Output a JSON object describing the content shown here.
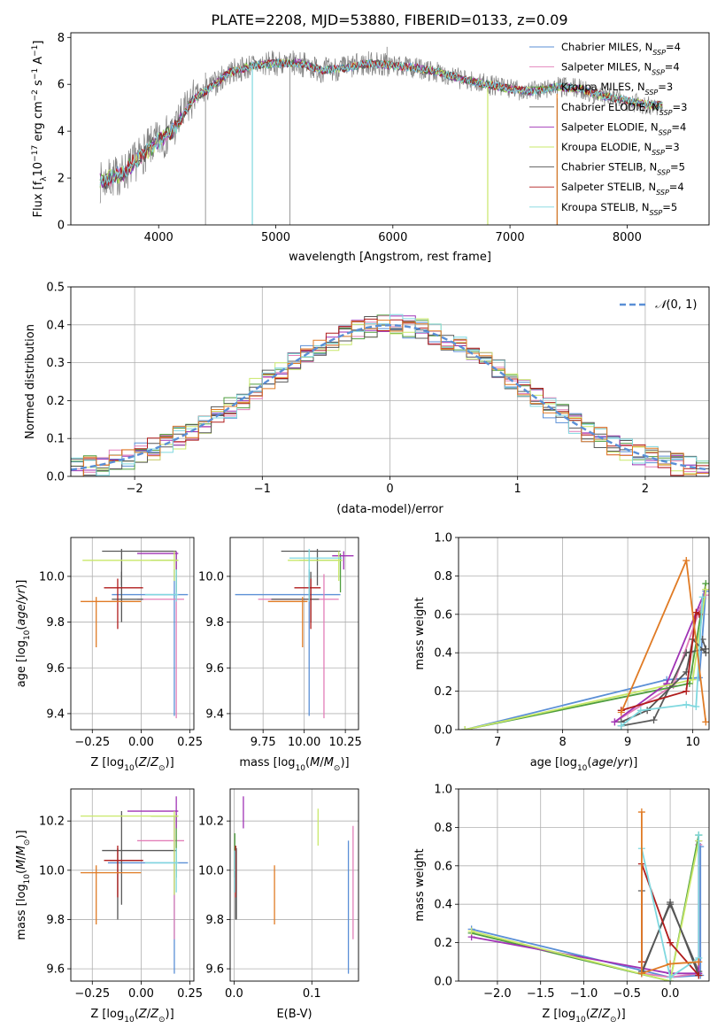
{
  "figure_title": "PLATE=2208, MJD=53880, FIBERID=0133, z=0.09",
  "colors": {
    "Chabrier MILES": "#5b8fd6",
    "Salpeter MILES": "#e27fb8",
    "Kroupa MILES": "#4f9e3e",
    "Chabrier ELODIE": "#5a5a5a",
    "Salpeter ELODIE": "#a033b5",
    "Kroupa ELODIE": "#c9e86a",
    "Chabrier STELIB": "#555555",
    "Salpeter STELIB": "#b01c1c",
    "Kroupa STELIB": "#7fd8df",
    "extra": "#e07b25",
    "data": "#808080",
    "normal": "#5a8fd6"
  },
  "chart_data": [
    {
      "type": "line",
      "panel": "spectrum",
      "title": "PLATE=2208, MJD=53880, FIBERID=0133, z=0.09",
      "xlabel": "wavelength [Angstrom, rest frame]",
      "ylabel": "Flux [f_λ 10^-17 erg cm^-2 s^-1 A^-1]",
      "xlim": [
        3250,
        8700
      ],
      "ylim": [
        0,
        8.2
      ],
      "xticks": [
        4000,
        5000,
        6000,
        7000,
        8000
      ],
      "yticks": [
        0,
        2,
        4,
        6,
        8
      ],
      "grid": false,
      "legend_position": "right",
      "legend": [
        {
          "name": "Chabrier MILES",
          "nssp": "4"
        },
        {
          "name": "Salpeter MILES",
          "nssp": "4"
        },
        {
          "name": "Kroupa MILES",
          "nssp": "3"
        },
        {
          "name": "Chabrier ELODIE",
          "nssp": "3"
        },
        {
          "name": "Salpeter ELODIE",
          "nssp": "4"
        },
        {
          "name": "Kroupa ELODIE",
          "nssp": "3"
        },
        {
          "name": "Chabrier STELIB",
          "nssp": "5"
        },
        {
          "name": "Salpeter STELIB",
          "nssp": "4"
        },
        {
          "name": "Kroupa STELIB",
          "nssp": "5"
        }
      ],
      "data_envelope": {
        "x": [
          3500,
          3700,
          3900,
          4000,
          4100,
          4200,
          4300,
          4400,
          4600,
          4800,
          5000,
          5200,
          5400,
          5600,
          5800,
          6000,
          6200,
          6400,
          6600,
          6800,
          7000,
          7200,
          7400,
          7600,
          7800,
          8000,
          8200,
          8300
        ],
        "y": [
          1.8,
          2.2,
          3.2,
          3.6,
          3.9,
          4.6,
          5.4,
          5.7,
          6.5,
          6.8,
          6.9,
          6.9,
          6.6,
          6.7,
          6.9,
          6.8,
          6.7,
          6.5,
          6.2,
          6.0,
          5.8,
          5.7,
          5.9,
          5.8,
          5.5,
          5.3,
          5.1,
          5.1
        ]
      }
    },
    {
      "type": "bar",
      "panel": "residual histogram",
      "xlabel": "(data-model)/error",
      "ylabel": "Normed distribution",
      "xlim": [
        -2.5,
        2.5
      ],
      "ylim": [
        0,
        0.5
      ],
      "xticks": [
        -2,
        -1,
        0,
        1,
        2
      ],
      "yticks": [
        0.0,
        0.1,
        0.2,
        0.3,
        0.4,
        0.5
      ],
      "grid": true,
      "legend_position": "top-right",
      "legend": [
        {
          "name": "N(0,1)"
        }
      ],
      "bin_width": 0.1
    },
    {
      "type": "scatter",
      "panel": "age vs Z",
      "xlabel": "Z [log10(Z/Z_sun)]",
      "ylabel": "age [log10(age/yr)]",
      "xlim": [
        -0.36,
        0.27
      ],
      "ylim": [
        9.33,
        10.17
      ],
      "xticks": [
        -0.25,
        0.0,
        0.25
      ],
      "yticks": [
        9.4,
        9.6,
        9.8,
        10.0
      ],
      "grid": true,
      "points": [
        {
          "model": "Chabrier MILES",
          "x": 0.17,
          "y": 9.92,
          "xlo": -0.15,
          "xhi": 0.24,
          "ylo": 9.39,
          "yhi": 10.03
        },
        {
          "model": "Salpeter MILES",
          "x": 0.18,
          "y": 9.9,
          "xlo": -0.02,
          "xhi": 0.22,
          "ylo": 9.38,
          "yhi": 10.01
        },
        {
          "model": "Kroupa MILES",
          "x": 0.18,
          "y": 10.07,
          "xlo": 0.05,
          "xhi": 0.19,
          "ylo": 9.93,
          "yhi": 10.1
        },
        {
          "model": "Chabrier ELODIE",
          "x": -0.1,
          "y": 10.11,
          "xlo": -0.2,
          "xhi": 0.18,
          "ylo": 9.96,
          "yhi": 10.12
        },
        {
          "model": "Salpeter ELODIE",
          "x": 0.18,
          "y": 10.1,
          "xlo": -0.02,
          "xhi": 0.19,
          "ylo": 10.03,
          "yhi": 10.11
        },
        {
          "model": "Kroupa ELODIE",
          "x": 0.17,
          "y": 10.07,
          "xlo": -0.3,
          "xhi": 0.19,
          "ylo": 9.98,
          "yhi": 10.11
        },
        {
          "model": "Chabrier STELIB",
          "x": -0.1,
          "y": 9.9,
          "xlo": -0.15,
          "xhi": 0.01,
          "ylo": 9.8,
          "yhi": 10.02
        },
        {
          "model": "Salpeter STELIB",
          "x": -0.12,
          "y": 9.95,
          "xlo": -0.19,
          "xhi": 0.01,
          "ylo": 9.77,
          "yhi": 9.99
        },
        {
          "model": "Kroupa STELIB",
          "x": 0.18,
          "y": 9.92,
          "xlo": 0.02,
          "xhi": 0.19,
          "ylo": 9.89,
          "yhi": 10.03
        },
        {
          "model": "extra",
          "x": -0.23,
          "y": 9.89,
          "xlo": -0.31,
          "xhi": 0.0,
          "ylo": 9.69,
          "yhi": 9.91
        }
      ]
    },
    {
      "type": "scatter",
      "panel": "age vs mass",
      "xlabel": "mass [log10(M/M_sun)]",
      "ylabel": "",
      "xlim": [
        9.55,
        10.33
      ],
      "ylim": [
        9.33,
        10.17
      ],
      "xticks": [
        9.75,
        10.0,
        10.25
      ],
      "yticks": [
        9.4,
        9.6,
        9.8,
        10.0
      ],
      "grid": true,
      "points": [
        {
          "model": "Chabrier MILES",
          "x": 10.03,
          "y": 9.92,
          "xlo": 9.58,
          "xhi": 10.22,
          "ylo": 9.39,
          "yhi": 10.03
        },
        {
          "model": "Salpeter MILES",
          "x": 10.12,
          "y": 9.9,
          "xlo": 9.72,
          "xhi": 10.21,
          "ylo": 9.38,
          "yhi": 10.01
        },
        {
          "model": "Kroupa MILES",
          "x": 10.22,
          "y": 10.07,
          "xlo": 9.97,
          "xhi": 10.23,
          "ylo": 9.93,
          "yhi": 10.1
        },
        {
          "model": "Chabrier ELODIE",
          "x": 10.08,
          "y": 10.11,
          "xlo": 9.86,
          "xhi": 10.22,
          "ylo": 9.96,
          "yhi": 10.12
        },
        {
          "model": "Salpeter ELODIE",
          "x": 10.24,
          "y": 10.09,
          "xlo": 10.17,
          "xhi": 10.3,
          "ylo": 10.03,
          "yhi": 10.11
        },
        {
          "model": "Kroupa ELODIE",
          "x": 10.21,
          "y": 10.07,
          "xlo": 9.9,
          "xhi": 10.23,
          "ylo": 9.98,
          "yhi": 10.11
        },
        {
          "model": "Chabrier STELIB",
          "x": 10.04,
          "y": 9.9,
          "xlo": 9.8,
          "xhi": 10.09,
          "ylo": 9.8,
          "yhi": 10.02
        },
        {
          "model": "Salpeter STELIB",
          "x": 10.04,
          "y": 9.95,
          "xlo": 9.94,
          "xhi": 10.1,
          "ylo": 9.77,
          "yhi": 9.99
        },
        {
          "model": "Kroupa STELIB",
          "x": 10.03,
          "y": 10.08,
          "xlo": 9.91,
          "xhi": 10.23,
          "ylo": 9.89,
          "yhi": 10.12
        },
        {
          "model": "extra",
          "x": 9.99,
          "y": 9.89,
          "xlo": 9.78,
          "xhi": 10.02,
          "ylo": 9.69,
          "yhi": 9.91
        }
      ]
    },
    {
      "type": "line",
      "panel": "mass weight vs age",
      "xlabel": "age [log10(age/yr)]",
      "ylabel": "mass weight",
      "xlim": [
        6.4,
        10.25
      ],
      "ylim": [
        0,
        1.0
      ],
      "xticks": [
        7,
        8,
        9,
        10
      ],
      "yticks": [
        0.0,
        0.2,
        0.4,
        0.6,
        0.8,
        1.0
      ],
      "grid": true,
      "series": [
        {
          "model": "Chabrier MILES",
          "x": [
            6.5,
            9.6,
            10.1,
            10.2
          ],
          "y": [
            0.0,
            0.26,
            0.27,
            0.72
          ]
        },
        {
          "model": "Salpeter MILES",
          "x": [
            8.8,
            9.7,
            10.1,
            10.2
          ],
          "y": [
            0.04,
            0.23,
            0.62,
            0.7
          ]
        },
        {
          "model": "Kroupa MILES",
          "x": [
            6.5,
            9.95,
            10.2
          ],
          "y": [
            0.0,
            0.24,
            0.76
          ]
        },
        {
          "model": "Chabrier ELODIE",
          "x": [
            8.9,
            9.4,
            9.9,
            10.2,
            10.15
          ],
          "y": [
            0.02,
            0.05,
            0.4,
            0.42,
            0.47
          ]
        },
        {
          "model": "Salpeter ELODIE",
          "x": [
            8.8,
            9.6,
            10.2
          ],
          "y": [
            0.04,
            0.24,
            0.73
          ]
        },
        {
          "model": "Kroupa ELODIE",
          "x": [
            6.5,
            10.0,
            10.2
          ],
          "y": [
            0.0,
            0.26,
            0.73
          ]
        },
        {
          "model": "Chabrier STELIB",
          "x": [
            8.9,
            9.3,
            9.9,
            10.0,
            10.2
          ],
          "y": [
            0.04,
            0.1,
            0.3,
            0.47,
            0.4
          ]
        },
        {
          "model": "Salpeter STELIB",
          "x": [
            8.9,
            9.9,
            10.05,
            10.1
          ],
          "y": [
            0.1,
            0.2,
            0.61,
            0.6
          ]
        },
        {
          "model": "Kroupa STELIB",
          "x": [
            8.9,
            9.2,
            9.9,
            10.05,
            10.15
          ],
          "y": [
            0.02,
            0.1,
            0.13,
            0.12,
            0.69
          ]
        },
        {
          "model": "extra",
          "x": [
            8.9,
            9.9,
            10.2
          ],
          "y": [
            0.09,
            0.88,
            0.04
          ]
        }
      ]
    },
    {
      "type": "scatter",
      "panel": "mass vs Z",
      "xlabel": "Z [log10(Z/Z_sun)]",
      "ylabel": "mass [log10(M/M_sun)]",
      "xlim": [
        -0.36,
        0.27
      ],
      "ylim": [
        9.55,
        10.33
      ],
      "xticks": [
        -0.25,
        0.0,
        0.25
      ],
      "yticks": [
        9.6,
        9.8,
        10.0,
        10.2
      ],
      "grid": true,
      "points": [
        {
          "model": "Chabrier MILES",
          "x": 0.17,
          "y": 10.03,
          "xlo": -0.17,
          "xhi": 0.24,
          "ylo": 9.58,
          "yhi": 10.22
        },
        {
          "model": "Salpeter MILES",
          "x": 0.17,
          "y": 10.12,
          "xlo": -0.02,
          "xhi": 0.22,
          "ylo": 9.72,
          "yhi": 10.22
        },
        {
          "model": "Kroupa MILES",
          "x": 0.18,
          "y": 10.22,
          "xlo": 0.05,
          "xhi": 0.19,
          "ylo": 9.97,
          "yhi": 10.23
        },
        {
          "model": "Chabrier ELODIE",
          "x": -0.1,
          "y": 10.08,
          "xlo": -0.2,
          "xhi": 0.18,
          "ylo": 9.86,
          "yhi": 10.24
        },
        {
          "model": "Salpeter ELODIE",
          "x": 0.18,
          "y": 10.24,
          "xlo": -0.07,
          "xhi": 0.19,
          "ylo": 10.17,
          "yhi": 10.3
        },
        {
          "model": "Kroupa ELODIE",
          "x": 0.17,
          "y": 10.22,
          "xlo": -0.31,
          "xhi": 0.19,
          "ylo": 9.9,
          "yhi": 10.24
        },
        {
          "model": "Chabrier STELIB",
          "x": -0.12,
          "y": 10.04,
          "xlo": -0.16,
          "xhi": 0.01,
          "ylo": 9.8,
          "yhi": 10.09
        },
        {
          "model": "Salpeter STELIB",
          "x": -0.12,
          "y": 10.04,
          "xlo": -0.19,
          "xhi": 0.01,
          "ylo": 9.89,
          "yhi": 10.1
        },
        {
          "model": "Kroupa STELIB",
          "x": 0.18,
          "y": 10.03,
          "xlo": 0.02,
          "xhi": 0.19,
          "ylo": 9.91,
          "yhi": 10.09
        },
        {
          "model": "extra",
          "x": -0.23,
          "y": 9.99,
          "xlo": -0.31,
          "xhi": 0.0,
          "ylo": 9.78,
          "yhi": 10.02
        }
      ]
    },
    {
      "type": "scatter",
      "panel": "mass vs E(B-V)",
      "xlabel": "E(B-V)",
      "ylabel": "",
      "xlim": [
        -0.005,
        0.16
      ],
      "ylim": [
        9.55,
        10.33
      ],
      "xticks": [
        0.0,
        0.1
      ],
      "yticks": [
        9.6,
        9.8,
        10.0,
        10.2
      ],
      "grid": true,
      "points": [
        {
          "model": "Chabrier MILES",
          "x": 0.147,
          "y": 10.03,
          "ylo": 9.58,
          "yhi": 10.12
        },
        {
          "model": "Salpeter MILES",
          "x": 0.153,
          "y": 10.12,
          "ylo": 9.72,
          "yhi": 10.18
        },
        {
          "model": "Kroupa MILES",
          "x": 0.001,
          "y": 10.1,
          "ylo": 9.97,
          "yhi": 10.15
        },
        {
          "model": "Chabrier ELODIE",
          "x": 0.003,
          "y": 10.02,
          "ylo": 9.8,
          "yhi": 10.09
        },
        {
          "model": "Salpeter ELODIE",
          "x": 0.012,
          "y": 10.24,
          "ylo": 10.17,
          "yhi": 10.3
        },
        {
          "model": "Kroupa ELODIE",
          "x": 0.108,
          "y": 10.18,
          "ylo": 10.1,
          "yhi": 10.25
        },
        {
          "model": "Chabrier STELIB",
          "x": 0.002,
          "y": 10.05,
          "ylo": 9.8,
          "yhi": 10.1
        },
        {
          "model": "Salpeter STELIB",
          "x": 0.002,
          "y": 10.02,
          "ylo": 9.89,
          "yhi": 10.1
        },
        {
          "model": "Kroupa STELIB",
          "x": 0.001,
          "y": 10.05,
          "ylo": 9.91,
          "yhi": 10.08
        },
        {
          "model": "extra",
          "x": 0.052,
          "y": 9.9,
          "ylo": 9.78,
          "yhi": 10.02
        }
      ]
    },
    {
      "type": "line",
      "panel": "mass weight vs Z",
      "xlabel": "Z [log10(Z/Z_sun)]",
      "ylabel": "mass weight",
      "xlim": [
        -2.45,
        0.45
      ],
      "ylim": [
        0,
        1.0
      ],
      "xticks": [
        -2.0,
        -1.5,
        -1.0,
        -0.5,
        0.0
      ],
      "yticks": [
        0.0,
        0.2,
        0.4,
        0.6,
        0.8,
        1.0
      ],
      "grid": true,
      "series": [
        {
          "model": "Chabrier MILES",
          "x": [
            -2.3,
            0.0,
            0.35,
            0.35
          ],
          "y": [
            0.27,
            0.02,
            0.03,
            0.7
          ]
        },
        {
          "model": "Salpeter MILES",
          "x": [
            -0.33,
            0.0,
            0.33,
            0.33
          ],
          "y": [
            0.04,
            0.02,
            0.04,
            0.71
          ]
        },
        {
          "model": "Kroupa MILES",
          "x": [
            -2.3,
            0.0,
            0.33
          ],
          "y": [
            0.25,
            0.0,
            0.76
          ]
        },
        {
          "model": "Chabrier ELODIE",
          "x": [
            -0.33,
            -0.33,
            0.0,
            0.33
          ],
          "y": [
            0.47,
            0.05,
            0.4,
            0.05
          ]
        },
        {
          "model": "Salpeter ELODIE",
          "x": [
            -2.3,
            0.0,
            0.33,
            0.33
          ],
          "y": [
            0.23,
            0.04,
            0.04,
            0.73
          ]
        },
        {
          "model": "Kroupa ELODIE",
          "x": [
            -2.3,
            0.0,
            0.33
          ],
          "y": [
            0.26,
            0.0,
            0.73
          ]
        },
        {
          "model": "Chabrier STELIB",
          "x": [
            -0.33,
            0.0,
            0.33
          ],
          "y": [
            0.04,
            0.41,
            0.03
          ]
        },
        {
          "model": "Salpeter STELIB",
          "x": [
            -0.33,
            -0.33,
            0.0,
            0.33
          ],
          "y": [
            0.1,
            0.61,
            0.2,
            0.03
          ]
        },
        {
          "model": "Kroupa STELIB",
          "x": [
            -0.33,
            0.0,
            0.33,
            0.33
          ],
          "y": [
            0.69,
            0.02,
            0.12,
            0.76
          ]
        },
        {
          "model": "extra",
          "x": [
            -0.33,
            -0.33,
            0.0,
            0.33
          ],
          "y": [
            0.88,
            0.04,
            0.09,
            0.1
          ]
        }
      ]
    }
  ]
}
